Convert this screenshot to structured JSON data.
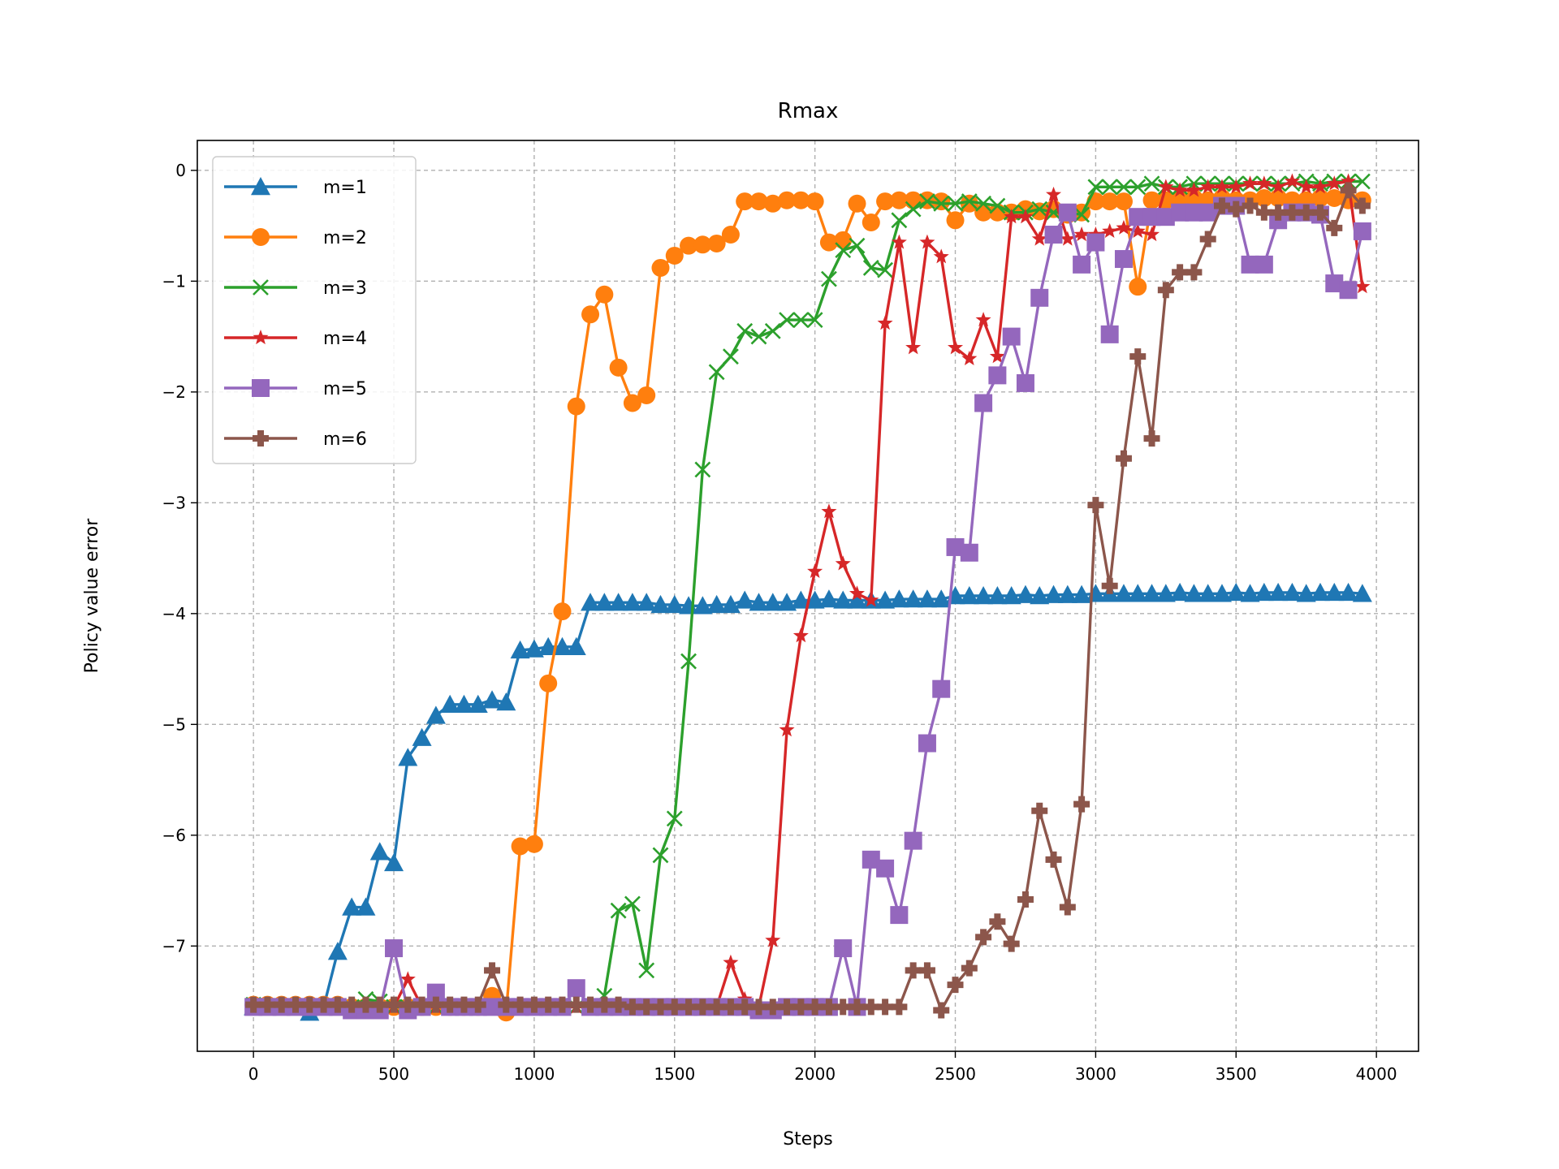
{
  "chart_data": {
    "type": "line",
    "title": "Rmax",
    "xlabel": "Steps",
    "ylabel": "Policy value error",
    "xlim": [
      -200,
      4150
    ],
    "ylim": [
      -7.95,
      0.27
    ],
    "xticks": [
      0,
      500,
      1000,
      1500,
      2000,
      2500,
      3000,
      3500,
      4000
    ],
    "yticks": [
      0,
      -1,
      -2,
      -3,
      -4,
      -5,
      -6,
      -7
    ],
    "xtick_labels": [
      "0",
      "500",
      "1000",
      "1500",
      "2000",
      "2500",
      "3000",
      "3500",
      "4000"
    ],
    "ytick_labels": [
      "0",
      "−1",
      "−2",
      "−3",
      "−4",
      "−5",
      "−6",
      "−7"
    ],
    "grid": true,
    "legend_position": "upper-left",
    "x": [
      0,
      50,
      100,
      150,
      200,
      250,
      300,
      350,
      400,
      450,
      500,
      550,
      600,
      650,
      700,
      750,
      800,
      850,
      900,
      950,
      1000,
      1050,
      1100,
      1150,
      1200,
      1250,
      1300,
      1350,
      1400,
      1450,
      1500,
      1550,
      1600,
      1650,
      1700,
      1750,
      1800,
      1850,
      1900,
      1950,
      2000,
      2050,
      2100,
      2150,
      2200,
      2250,
      2300,
      2350,
      2400,
      2450,
      2500,
      2550,
      2600,
      2650,
      2700,
      2750,
      2800,
      2850,
      2900,
      2950,
      3000,
      3050,
      3100,
      3150,
      3200,
      3250,
      3300,
      3350,
      3400,
      3450,
      3500,
      3550,
      3600,
      3650,
      3700,
      3750,
      3800,
      3850,
      3900,
      3950
    ],
    "series": [
      {
        "name": "m=1",
        "color": "#1f77b4",
        "marker": "triangle-up",
        "values": [
          -7.55,
          -7.55,
          -7.55,
          -7.55,
          -7.6,
          -7.55,
          -7.05,
          -6.65,
          -6.65,
          -6.15,
          -6.25,
          -5.3,
          -5.12,
          -4.92,
          -4.82,
          -4.82,
          -4.82,
          -4.78,
          -4.8,
          -4.33,
          -4.32,
          -4.3,
          -4.3,
          -4.3,
          -3.9,
          -3.9,
          -3.9,
          -3.9,
          -3.9,
          -3.92,
          -3.92,
          -3.93,
          -3.93,
          -3.92,
          -3.92,
          -3.88,
          -3.9,
          -3.9,
          -3.9,
          -3.88,
          -3.88,
          -3.87,
          -3.88,
          -3.88,
          -3.88,
          -3.88,
          -3.87,
          -3.87,
          -3.87,
          -3.87,
          -3.84,
          -3.84,
          -3.84,
          -3.84,
          -3.84,
          -3.83,
          -3.84,
          -3.83,
          -3.83,
          -3.83,
          -3.82,
          -3.82,
          -3.82,
          -3.82,
          -3.82,
          -3.82,
          -3.81,
          -3.82,
          -3.82,
          -3.82,
          -3.81,
          -3.82,
          -3.81,
          -3.81,
          -3.81,
          -3.82,
          -3.81,
          -3.81,
          -3.81,
          -3.82
        ]
      },
      {
        "name": "m=2",
        "color": "#ff7f0e",
        "marker": "circle",
        "values": [
          -7.53,
          -7.53,
          -7.53,
          -7.53,
          -7.53,
          -7.53,
          -7.53,
          -7.55,
          -7.55,
          -7.55,
          -7.55,
          -7.55,
          -7.55,
          -7.55,
          -7.55,
          -7.55,
          -7.55,
          -7.45,
          -7.6,
          -6.1,
          -6.08,
          -4.63,
          -3.98,
          -2.13,
          -1.3,
          -1.12,
          -1.78,
          -2.1,
          -2.03,
          -0.88,
          -0.77,
          -0.68,
          -0.67,
          -0.66,
          -0.58,
          -0.28,
          -0.28,
          -0.3,
          -0.27,
          -0.27,
          -0.28,
          -0.65,
          -0.63,
          -0.3,
          -0.47,
          -0.28,
          -0.27,
          -0.27,
          -0.27,
          -0.28,
          -0.45,
          -0.3,
          -0.38,
          -0.38,
          -0.38,
          -0.35,
          -0.37,
          -0.35,
          -0.4,
          -0.38,
          -0.28,
          -0.28,
          -0.28,
          -1.05,
          -0.27,
          -0.27,
          -0.25,
          -0.25,
          -0.27,
          -0.25,
          -0.27,
          -0.27,
          -0.25,
          -0.25,
          -0.27,
          -0.27,
          -0.25,
          -0.25,
          -0.27,
          -0.27
        ]
      },
      {
        "name": "m=3",
        "color": "#2ca02c",
        "marker": "x",
        "values": [
          -7.53,
          -7.55,
          -7.55,
          -7.55,
          -7.55,
          -7.55,
          -7.55,
          -7.55,
          -7.48,
          -7.5,
          -7.55,
          -7.55,
          -7.55,
          -7.55,
          -7.55,
          -7.55,
          -7.55,
          -7.55,
          -7.55,
          -7.55,
          -7.55,
          -7.55,
          -7.55,
          -7.55,
          -7.55,
          -7.45,
          -6.68,
          -6.62,
          -7.22,
          -6.18,
          -5.85,
          -4.43,
          -2.7,
          -1.82,
          -1.68,
          -1.45,
          -1.5,
          -1.45,
          -1.35,
          -1.35,
          -1.35,
          -0.98,
          -0.72,
          -0.68,
          -0.88,
          -0.9,
          -0.45,
          -0.35,
          -0.28,
          -0.3,
          -0.3,
          -0.28,
          -0.3,
          -0.32,
          -0.38,
          -0.38,
          -0.35,
          -0.38,
          -0.38,
          -0.4,
          -0.15,
          -0.15,
          -0.15,
          -0.15,
          -0.12,
          -0.15,
          -0.15,
          -0.12,
          -0.12,
          -0.12,
          -0.12,
          -0.12,
          -0.12,
          -0.12,
          -0.12,
          -0.1,
          -0.12,
          -0.1,
          -0.1,
          -0.1
        ]
      },
      {
        "name": "m=4",
        "color": "#d62728",
        "marker": "star",
        "values": [
          -7.55,
          -7.55,
          -7.55,
          -7.55,
          -7.55,
          -7.55,
          -7.55,
          -7.55,
          -7.55,
          -7.55,
          -7.55,
          -7.3,
          -7.55,
          -7.55,
          -7.55,
          -7.55,
          -7.55,
          -7.55,
          -7.55,
          -7.55,
          -7.55,
          -7.55,
          -7.55,
          -7.55,
          -7.55,
          -7.55,
          -7.55,
          -7.55,
          -7.55,
          -7.55,
          -7.55,
          -7.55,
          -7.55,
          -7.55,
          -7.15,
          -7.48,
          -7.55,
          -6.95,
          -5.05,
          -4.2,
          -3.62,
          -3.08,
          -3.55,
          -3.82,
          -3.88,
          -1.38,
          -0.65,
          -1.6,
          -0.65,
          -0.78,
          -1.6,
          -1.7,
          -1.35,
          -1.68,
          -0.42,
          -0.42,
          -0.62,
          -0.22,
          -0.62,
          -0.58,
          -0.58,
          -0.55,
          -0.52,
          -0.55,
          -0.58,
          -0.15,
          -0.18,
          -0.18,
          -0.15,
          -0.15,
          -0.15,
          -0.12,
          -0.12,
          -0.15,
          -0.1,
          -0.15,
          -0.15,
          -0.12,
          -0.1,
          -1.05
        ]
      },
      {
        "name": "m=5",
        "color": "#9467bd",
        "marker": "square",
        "values": [
          -7.55,
          -7.55,
          -7.55,
          -7.55,
          -7.55,
          -7.55,
          -7.55,
          -7.58,
          -7.58,
          -7.58,
          -7.02,
          -7.58,
          -7.55,
          -7.42,
          -7.55,
          -7.55,
          -7.55,
          -7.55,
          -7.55,
          -7.55,
          -7.55,
          -7.55,
          -7.55,
          -7.38,
          -7.55,
          -7.55,
          -7.55,
          -7.55,
          -7.55,
          -7.55,
          -7.55,
          -7.55,
          -7.55,
          -7.55,
          -7.55,
          -7.55,
          -7.58,
          -7.58,
          -7.55,
          -7.55,
          -7.55,
          -7.55,
          -7.02,
          -7.55,
          -6.22,
          -6.3,
          -6.72,
          -6.05,
          -5.17,
          -4.68,
          -3.4,
          -3.45,
          -2.1,
          -1.85,
          -1.5,
          -1.92,
          -1.15,
          -0.58,
          -0.38,
          -0.85,
          -0.65,
          -1.48,
          -0.8,
          -0.42,
          -0.42,
          -0.42,
          -0.38,
          -0.38,
          -0.38,
          -0.32,
          -0.32,
          -0.85,
          -0.85,
          -0.45,
          -0.38,
          -0.38,
          -0.4,
          -1.02,
          -1.08,
          -0.55
        ]
      },
      {
        "name": "m=6",
        "color": "#8c564b",
        "marker": "plus",
        "values": [
          -7.53,
          -7.53,
          -7.53,
          -7.53,
          -7.53,
          -7.53,
          -7.53,
          -7.53,
          -7.53,
          -7.53,
          -7.53,
          -7.53,
          -7.53,
          -7.53,
          -7.53,
          -7.53,
          -7.53,
          -7.22,
          -7.53,
          -7.53,
          -7.53,
          -7.53,
          -7.53,
          -7.53,
          -7.53,
          -7.53,
          -7.53,
          -7.55,
          -7.55,
          -7.55,
          -7.55,
          -7.55,
          -7.55,
          -7.55,
          -7.55,
          -7.55,
          -7.55,
          -7.55,
          -7.55,
          -7.55,
          -7.55,
          -7.55,
          -7.55,
          -7.55,
          -7.55,
          -7.55,
          -7.55,
          -7.22,
          -7.22,
          -7.58,
          -7.35,
          -7.2,
          -6.92,
          -6.78,
          -6.98,
          -6.58,
          -5.78,
          -6.22,
          -6.65,
          -5.72,
          -3.02,
          -3.75,
          -2.6,
          -1.68,
          -2.42,
          -1.08,
          -0.92,
          -0.92,
          -0.62,
          -0.32,
          -0.35,
          -0.32,
          -0.38,
          -0.38,
          -0.38,
          -0.38,
          -0.38,
          -0.52,
          -0.18,
          -0.32
        ]
      }
    ]
  }
}
